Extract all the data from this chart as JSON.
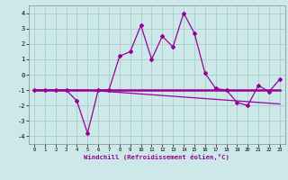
{
  "xlabel": "Windchill (Refroidissement éolien,°C)",
  "x": [
    0,
    1,
    2,
    3,
    4,
    5,
    6,
    7,
    8,
    9,
    10,
    11,
    12,
    13,
    14,
    15,
    16,
    17,
    18,
    19,
    20,
    21,
    22,
    23
  ],
  "y_main": [
    -1,
    -1,
    -1,
    -1,
    -1.7,
    -3.8,
    -1,
    -1,
    1.2,
    1.5,
    3.2,
    1.0,
    2.5,
    1.8,
    4.0,
    2.7,
    0.1,
    -0.9,
    -1.0,
    -1.8,
    -2.0,
    -0.7,
    -1.1,
    -0.3
  ],
  "y_flat": [
    -1,
    -1,
    -1,
    -1,
    -1,
    -1,
    -1,
    -1,
    -1,
    -1,
    -1,
    -1,
    -1,
    -1,
    -1,
    -1,
    -1,
    -1,
    -1,
    -1,
    -1,
    -1,
    -1,
    -1
  ],
  "y_trend": [
    -1,
    -1,
    -1,
    -1,
    -1,
    -1,
    -1.05,
    -1.1,
    -1.15,
    -1.2,
    -1.25,
    -1.3,
    -1.35,
    -1.4,
    -1.45,
    -1.5,
    -1.55,
    -1.6,
    -1.65,
    -1.7,
    -1.75,
    -1.8,
    -1.85,
    -1.9
  ],
  "ylim": [
    -4.5,
    4.5
  ],
  "xlim": [
    -0.5,
    23.5
  ],
  "yticks": [
    -4,
    -3,
    -2,
    -1,
    0,
    1,
    2,
    3,
    4
  ],
  "xticks": [
    0,
    1,
    2,
    3,
    4,
    5,
    6,
    7,
    8,
    9,
    10,
    11,
    12,
    13,
    14,
    15,
    16,
    17,
    18,
    19,
    20,
    21,
    22,
    23
  ],
  "line_color": "#990099",
  "bg_color": "#cce8e8",
  "grid_color": "#aacccc"
}
